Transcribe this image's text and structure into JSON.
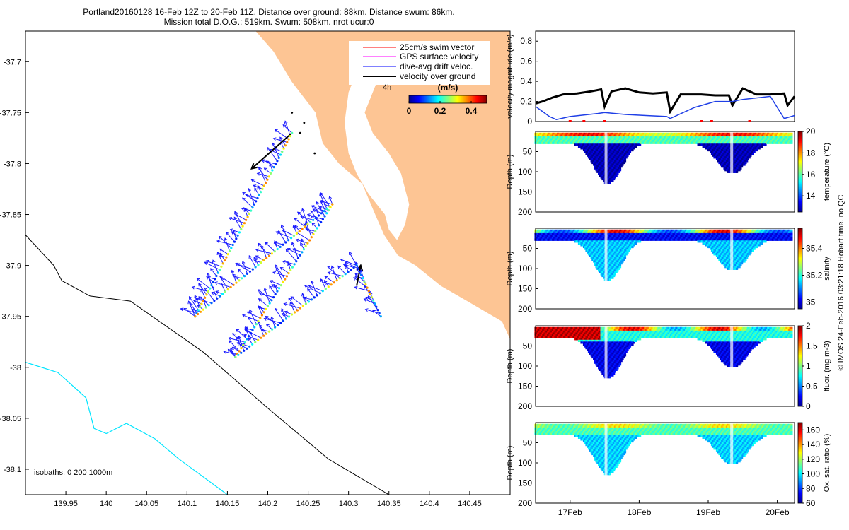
{
  "header": {
    "line1": "Portland20160128 16-Feb 12Z to 20-Feb 11Z. Distance over ground: 88km. Distance swum: 86km.",
    "line2": "Mission total D.O.G.: 519km. Swum: 508km. nrot ucur:0"
  },
  "side_note": "© IMOS 24-Feb-2016 03:21:18 Hobart time. no QC",
  "colors": {
    "land": "#fdc594",
    "velocity_black": "#000000",
    "velocity_blue": "#1f3fe6",
    "isobath_200": "#000000",
    "isobath_1000": "#00e5ff"
  },
  "chart_data": [
    {
      "id": "map",
      "type": "map-vector",
      "xlim": [
        139.9,
        140.5
      ],
      "ylim": [
        -38.125,
        -37.67
      ],
      "xticks": [
        139.95,
        140,
        140.05,
        140.1,
        140.15,
        140.2,
        140.25,
        140.3,
        140.35,
        140.4,
        140.45
      ],
      "xtick_labels": [
        "139.95",
        "140",
        "140.05",
        "140.1",
        "140.15",
        "140.2",
        "140.25",
        "140.3",
        "140.35",
        "140.4",
        "140.45"
      ],
      "yticks": [
        -37.7,
        -37.75,
        -37.8,
        -37.85,
        -37.9,
        -37.95,
        -38,
        -38.05,
        -38.1
      ],
      "ytick_labels": [
        "-37.7",
        "-37.75",
        "-37.8",
        "-37.85",
        "-37.9",
        "-37.95",
        "-38",
        "-38.05",
        "-38.1"
      ],
      "legend": [
        {
          "label": "25cm/s swim vector",
          "color": "#ff0000"
        },
        {
          "label": "GPS surface velocity",
          "color": "#ff00ff"
        },
        {
          "label": "dive-avg drift veloc.",
          "color": "#0000ff"
        },
        {
          "label": "velocity over ground",
          "color": "#000000"
        }
      ],
      "legend_scale_text": "4h",
      "colorbar": {
        "title": "(m/s)",
        "min": 0,
        "max": 0.5,
        "ticks": [
          0,
          0.2,
          0.4
        ],
        "tick_labels": [
          "0",
          "0.2",
          "0.4"
        ]
      },
      "isobaths_text": "isobaths: 0   200  1000m",
      "track": [
        {
          "lon": 140.23,
          "lat": -37.77
        },
        {
          "lon": 140.11,
          "lat": -37.95
        },
        {
          "lon": 140.28,
          "lat": -37.84
        },
        {
          "lon": 140.16,
          "lat": -37.99
        },
        {
          "lon": 140.31,
          "lat": -37.9
        },
        {
          "lon": 140.34,
          "lat": -37.95
        }
      ],
      "coastline": [
        [
          140.185,
          -37.67
        ],
        [
          140.207,
          -37.69
        ],
        [
          140.23,
          -37.72
        ],
        [
          140.259,
          -37.75
        ],
        [
          140.268,
          -37.78
        ],
        [
          140.288,
          -37.8
        ],
        [
          140.317,
          -37.82
        ],
        [
          140.333,
          -37.85
        ],
        [
          140.344,
          -37.87
        ],
        [
          140.361,
          -37.89
        ],
        [
          140.383,
          -37.9
        ],
        [
          140.414,
          -37.92
        ],
        [
          140.447,
          -37.935
        ],
        [
          140.49,
          -37.955
        ]
      ],
      "isobath_200": [
        [
          139.9,
          -37.87
        ],
        [
          139.935,
          -37.9
        ],
        [
          139.945,
          -37.915
        ],
        [
          139.98,
          -37.93
        ],
        [
          140.03,
          -37.935
        ],
        [
          140.12,
          -37.985
        ],
        [
          140.2,
          -38.04
        ],
        [
          140.275,
          -38.09
        ],
        [
          140.35,
          -38.125
        ]
      ],
      "isobath_1000": [
        [
          139.9,
          -37.995
        ],
        [
          139.94,
          -38.005
        ],
        [
          139.975,
          -38.03
        ],
        [
          139.985,
          -38.06
        ],
        [
          140.0,
          -38.065
        ],
        [
          140.025,
          -38.055
        ],
        [
          140.06,
          -38.07
        ],
        [
          140.09,
          -38.09
        ],
        [
          140.15,
          -38.125
        ]
      ]
    },
    {
      "id": "velocity",
      "type": "line",
      "ylabel": "velocity magnitude (m/s)",
      "ylim": [
        0,
        0.9
      ],
      "yticks": [
        0,
        0.2,
        0.4,
        0.6,
        0.8
      ],
      "ytick_labels": [
        "0",
        "0.2",
        "0.4",
        "0.6",
        "0.8"
      ],
      "xlim": [
        16.5,
        20.25
      ],
      "series": [
        {
          "name": "velocity over ground",
          "color": "#000000",
          "x": [
            16.5,
            16.6,
            16.75,
            16.9,
            17.1,
            17.3,
            17.45,
            17.5,
            17.6,
            17.8,
            18.0,
            18.2,
            18.4,
            18.45,
            18.6,
            18.9,
            19.1,
            19.3,
            19.35,
            19.5,
            19.7,
            19.9,
            20.1,
            20.15,
            20.25
          ],
          "y": [
            0.18,
            0.2,
            0.24,
            0.27,
            0.28,
            0.3,
            0.32,
            0.15,
            0.3,
            0.33,
            0.29,
            0.28,
            0.29,
            0.1,
            0.27,
            0.27,
            0.26,
            0.26,
            0.16,
            0.33,
            0.27,
            0.27,
            0.28,
            0.16,
            0.25
          ]
        },
        {
          "name": "dive-avg drift",
          "color": "#1f3fe6",
          "x": [
            16.5,
            16.7,
            16.8,
            17.0,
            17.4,
            17.5,
            17.8,
            18.1,
            18.4,
            18.45,
            18.8,
            19.1,
            19.35,
            19.5,
            19.9,
            20.1,
            20.25
          ],
          "y": [
            0.15,
            0.05,
            0.02,
            0.05,
            0.08,
            0.09,
            0.07,
            0.06,
            0.05,
            0.03,
            0.14,
            0.2,
            0.2,
            0.22,
            0.25,
            0.03,
            0.06
          ]
        }
      ]
    },
    {
      "id": "temperature",
      "type": "scatter",
      "ylabel": "Depth (m)",
      "clabel": "temperature (°C)",
      "ylim": [
        0,
        200
      ],
      "yticks": [
        0,
        50,
        100,
        150,
        200
      ],
      "ytick_labels": [
        "",
        "50",
        "100",
        "150",
        "200"
      ],
      "cticks": [
        14,
        16,
        18,
        20
      ],
      "ctick_labels": [
        "14",
        "16",
        "18",
        "20"
      ],
      "clim": [
        12.5,
        20
      ]
    },
    {
      "id": "salinity",
      "type": "scatter",
      "ylabel": "Depth (m)",
      "clabel": "salinity",
      "ylim": [
        0,
        200
      ],
      "yticks": [
        0,
        50,
        100,
        150,
        200
      ],
      "ytick_labels": [
        "",
        "50",
        "100",
        "150",
        "200"
      ],
      "cticks": [
        35,
        35.2,
        35.4
      ],
      "ctick_labels": [
        "35",
        "35.2",
        "35.4"
      ],
      "clim": [
        34.95,
        35.55
      ]
    },
    {
      "id": "fluor",
      "type": "scatter",
      "ylabel": "Depth (m)",
      "clabel": "fluor. (mg m-3)",
      "ylim": [
        0,
        200
      ],
      "yticks": [
        0,
        50,
        100,
        150,
        200
      ],
      "ytick_labels": [
        "",
        "50",
        "100",
        "150",
        "200"
      ],
      "cticks": [
        0,
        0.5,
        1,
        1.5,
        2
      ],
      "ctick_labels": [
        "0",
        "0.5",
        "1",
        "1.5",
        "2"
      ],
      "clim": [
        0,
        2
      ]
    },
    {
      "id": "oxygen",
      "type": "scatter",
      "ylabel": "Depth (m)",
      "clabel": "Ox. sat. ratio (%)",
      "ylim": [
        0,
        200
      ],
      "yticks": [
        0,
        50,
        100,
        150,
        200
      ],
      "ytick_labels": [
        "",
        "50",
        "100",
        "150",
        "200"
      ],
      "cticks": [
        60,
        80,
        100,
        120,
        140,
        160
      ],
      "ctick_labels": [
        "60",
        "80",
        "100",
        "120",
        "140",
        "160"
      ],
      "clim": [
        60,
        170
      ],
      "xticks": [
        17,
        18,
        19,
        20
      ],
      "xtick_labels": [
        "17Feb",
        "18Feb",
        "19Feb",
        "20Feb"
      ]
    }
  ]
}
